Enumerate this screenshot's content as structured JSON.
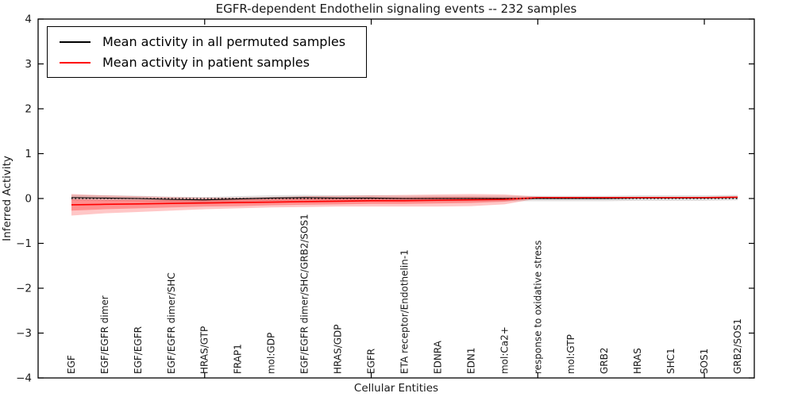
{
  "figure": {
    "title": "EGFR-dependent Endothelin signaling events -- 232 samples",
    "xlabel": "Cellular Entities",
    "ylabel": "Inferred Activity"
  },
  "legend": {
    "items": [
      {
        "label": "Mean activity in all permuted samples",
        "color": "#000000"
      },
      {
        "label": "Mean activity in patient samples",
        "color": "#ff0000"
      }
    ]
  },
  "chart_data": {
    "type": "line",
    "title": "EGFR-dependent Endothelin signaling events -- 232 samples",
    "xlabel": "Cellular Entities",
    "ylabel": "Inferred Activity",
    "ylim": [
      -4,
      4
    ],
    "yticks": [
      -4,
      -3,
      -2,
      -1,
      0,
      1,
      2,
      3,
      4
    ],
    "xlim": [
      0,
      21.5
    ],
    "xticks_numeric": [
      5,
      10,
      15,
      20
    ],
    "grid": false,
    "zero_line": true,
    "legend_position": "upper left",
    "categories": [
      "EGF",
      "EGF/EGFR dimer",
      "EGF/EGFR",
      "EGF/EGFR dimer/SHC",
      "HRAS/GTP",
      "FRAP1",
      "mol:GDP",
      "EGF/EGFR dimer/SHC/GRB2/SOS1",
      "HRAS/GDP",
      "EGFR",
      "ETA receptor/Endothelin-1",
      "EDNRA",
      "EDN1",
      "mol:Ca2+",
      "response to oxidative stress",
      "mol:GTP",
      "GRB2",
      "HRAS",
      "SHC1",
      "SOS1",
      "GRB2/SOS1"
    ],
    "series": [
      {
        "name": "Mean activity in all permuted samples",
        "color": "#000000",
        "line_width": 1.1,
        "values": [
          0.02,
          0.01,
          0.0,
          -0.02,
          -0.03,
          -0.01,
          0.01,
          0.02,
          0.01,
          0.01,
          0.0,
          0.0,
          0.0,
          0.0,
          0.0,
          0.0,
          0.0,
          0.01,
          0.01,
          0.01,
          0.02
        ],
        "band": {
          "fill": "rgba(0,0,0,0.13)",
          "hi": [
            0.08,
            0.07,
            0.06,
            0.04,
            0.03,
            0.05,
            0.07,
            0.08,
            0.07,
            0.07,
            0.06,
            0.06,
            0.06,
            0.06,
            0.06,
            0.06,
            0.06,
            0.07,
            0.07,
            0.07,
            0.08
          ],
          "lo": [
            -0.04,
            -0.05,
            -0.06,
            -0.08,
            -0.09,
            -0.07,
            -0.05,
            -0.04,
            -0.05,
            -0.05,
            -0.06,
            -0.06,
            -0.06,
            -0.06,
            -0.06,
            -0.06,
            -0.06,
            -0.05,
            -0.05,
            -0.05,
            -0.04
          ]
        }
      },
      {
        "name": "Mean activity in patient samples",
        "color": "#ff0000",
        "line_width": 1.6,
        "values": [
          -0.14,
          -0.13,
          -0.12,
          -0.11,
          -0.1,
          -0.09,
          -0.08,
          -0.07,
          -0.06,
          -0.05,
          -0.05,
          -0.04,
          -0.03,
          -0.02,
          0.02,
          0.02,
          0.02,
          0.02,
          0.02,
          0.02,
          0.03
        ],
        "band": {
          "fill": "rgba(255,0,0,0.22)",
          "hi": [
            0.1,
            0.07,
            0.05,
            0.03,
            0.02,
            0.02,
            0.03,
            0.05,
            0.06,
            0.07,
            0.08,
            0.09,
            0.1,
            0.09,
            0.04,
            0.03,
            0.03,
            0.03,
            0.03,
            0.03,
            0.04
          ],
          "lo": [
            -0.38,
            -0.33,
            -0.3,
            -0.27,
            -0.24,
            -0.22,
            -0.2,
            -0.19,
            -0.18,
            -0.18,
            -0.18,
            -0.18,
            -0.17,
            -0.13,
            0.0,
            0.0,
            0.0,
            0.0,
            0.0,
            0.0,
            0.01
          ]
        },
        "band_inner": {
          "fill": "rgba(255,0,0,0.28)",
          "hi": [
            -0.02,
            -0.03,
            -0.03,
            -0.03,
            -0.03,
            -0.02,
            -0.01,
            0.0,
            0.01,
            0.02,
            0.02,
            0.03,
            0.03,
            0.02,
            0.03,
            0.03,
            0.03,
            0.03,
            0.03,
            0.03,
            0.04
          ],
          "lo": [
            -0.27,
            -0.24,
            -0.22,
            -0.2,
            -0.18,
            -0.17,
            -0.15,
            -0.14,
            -0.13,
            -0.12,
            -0.12,
            -0.11,
            -0.1,
            -0.07,
            0.01,
            0.01,
            0.01,
            0.01,
            0.01,
            0.01,
            0.02
          ]
        }
      }
    ]
  }
}
